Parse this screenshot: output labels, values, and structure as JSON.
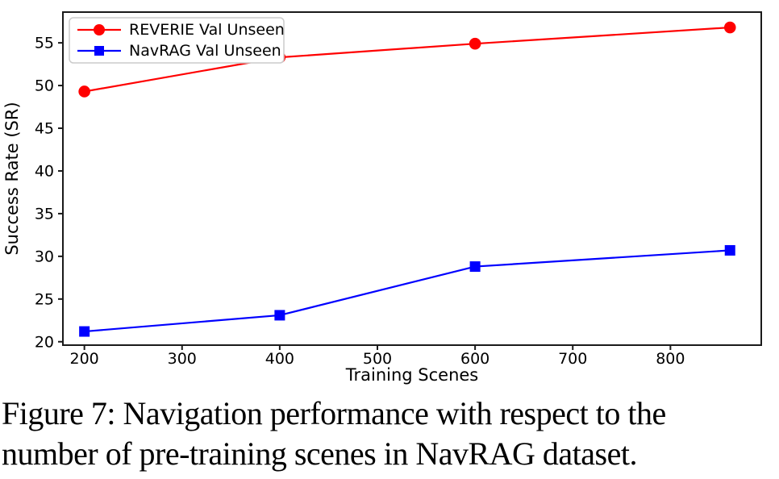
{
  "figure": {
    "caption_lines": [
      "Figure 7: Navigation performance with respect to the",
      "number of pre-training scenes in NavRAG dataset."
    ]
  },
  "chart_data": {
    "type": "line",
    "title": "",
    "xlabel": "Training Scenes",
    "ylabel": "Success Rate (SR)",
    "x": [
      200,
      400,
      600,
      861
    ],
    "series": [
      {
        "name": "REVERIE Val Unseen",
        "color": "#ff0000",
        "marker": "circle",
        "values": [
          49.3,
          53.3,
          54.9,
          56.8
        ]
      },
      {
        "name": "NavRAG Val Unseen",
        "color": "#0000ff",
        "marker": "square",
        "values": [
          21.2,
          23.1,
          28.8,
          30.7
        ]
      }
    ],
    "xticks": [
      200,
      300,
      400,
      500,
      600,
      700,
      800
    ],
    "yticks": [
      20,
      25,
      30,
      35,
      40,
      45,
      50,
      55
    ],
    "xlim": [
      178,
      893
    ],
    "ylim": [
      19.6,
      58.6
    ],
    "grid": false,
    "legend_position": "upper-left",
    "axis_color": "#1a1a1a"
  }
}
